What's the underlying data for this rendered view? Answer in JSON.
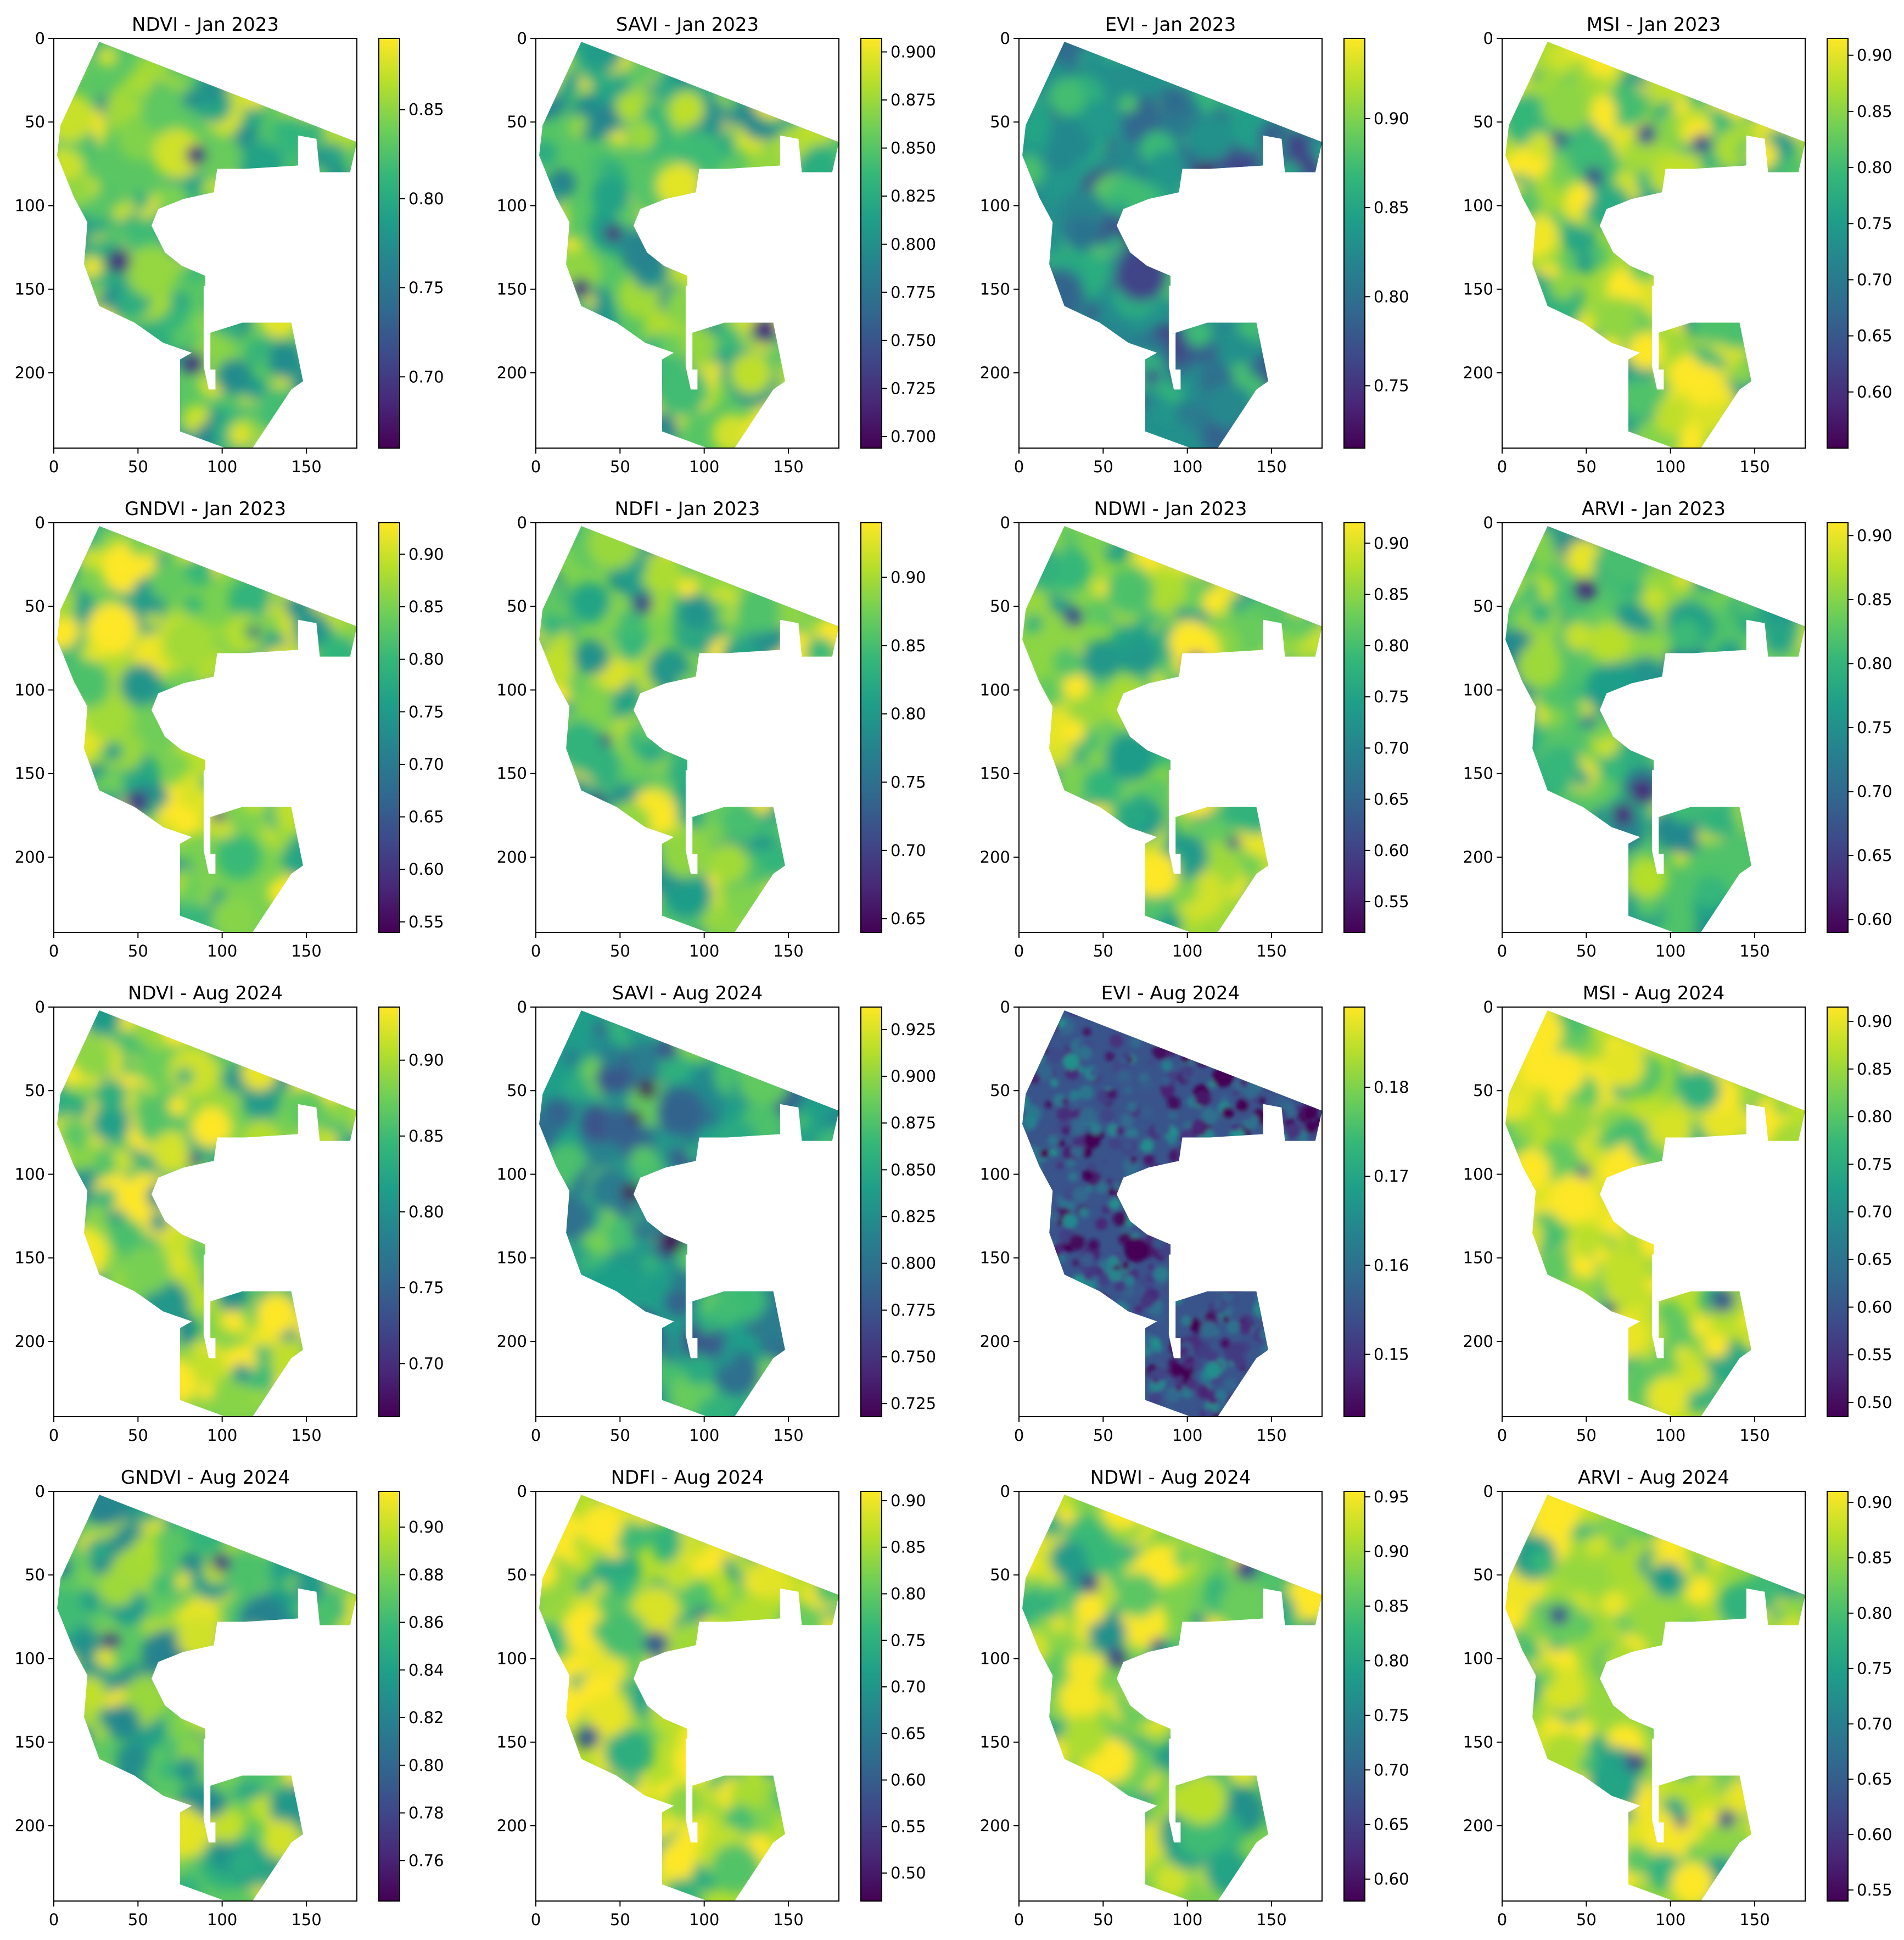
{
  "figure": {
    "colormap": "viridis",
    "colormap_stops": [
      "#440154",
      "#482878",
      "#3e4989",
      "#31688e",
      "#26828e",
      "#1f9e89",
      "#35b779",
      "#6ece58",
      "#b5de2b",
      "#fde725"
    ],
    "background_color": "#ffffff",
    "masked_color": "#ffffff",
    "rows": 4,
    "columns": 4
  },
  "chart_data": [
    {
      "type": "heatmap",
      "title": "NDVI - Jan 2023",
      "x_ticks": [
        0,
        50,
        100,
        150
      ],
      "y_ticks": [
        0,
        50,
        100,
        150,
        200
      ],
      "xlim": [
        0,
        180
      ],
      "ylim": [
        245,
        0
      ],
      "colorbar_ticks": [
        "0.70",
        "0.75",
        "0.80",
        "0.85"
      ],
      "colorbar_range": [
        0.66,
        0.89
      ],
      "field_mean": 0.83
    },
    {
      "type": "heatmap",
      "title": "SAVI - Jan 2023",
      "x_ticks": [
        0,
        50,
        100,
        150
      ],
      "y_ticks": [
        0,
        50,
        100,
        150,
        200
      ],
      "xlim": [
        0,
        180
      ],
      "ylim": [
        245,
        0
      ],
      "colorbar_ticks": [
        "0.700",
        "0.725",
        "0.750",
        "0.775",
        "0.800",
        "0.825",
        "0.850",
        "0.875",
        "0.900"
      ],
      "colorbar_range": [
        0.694,
        0.907
      ],
      "field_mean": 0.85
    },
    {
      "type": "heatmap",
      "title": "EVI - Jan 2023",
      "x_ticks": [
        0,
        50,
        100,
        150
      ],
      "y_ticks": [
        0,
        50,
        100,
        150,
        200
      ],
      "xlim": [
        0,
        180
      ],
      "ylim": [
        245,
        0
      ],
      "colorbar_ticks": [
        "0.75",
        "0.80",
        "0.85",
        "0.90"
      ],
      "colorbar_range": [
        0.715,
        0.945
      ],
      "field_mean": 0.83
    },
    {
      "type": "heatmap",
      "title": "MSI - Jan 2023",
      "x_ticks": [
        0,
        50,
        100,
        150
      ],
      "y_ticks": [
        0,
        50,
        100,
        150,
        200
      ],
      "xlim": [
        0,
        180
      ],
      "ylim": [
        245,
        0
      ],
      "colorbar_ticks": [
        "0.60",
        "0.65",
        "0.70",
        "0.75",
        "0.80",
        "0.85",
        "0.90"
      ],
      "colorbar_range": [
        0.55,
        0.915
      ],
      "field_mean": 0.86
    },
    {
      "type": "heatmap",
      "title": "GNDVI - Jan 2023",
      "x_ticks": [
        0,
        50,
        100,
        150
      ],
      "y_ticks": [
        0,
        50,
        100,
        150,
        200
      ],
      "xlim": [
        0,
        180
      ],
      "ylim": [
        245,
        0
      ],
      "colorbar_ticks": [
        "0.55",
        "0.60",
        "0.65",
        "0.70",
        "0.75",
        "0.80",
        "0.85",
        "0.90"
      ],
      "colorbar_range": [
        0.54,
        0.93
      ],
      "field_mean": 0.85
    },
    {
      "type": "heatmap",
      "title": "NDFI - Jan 2023",
      "x_ticks": [
        0,
        50,
        100,
        150
      ],
      "y_ticks": [
        0,
        50,
        100,
        150,
        200
      ],
      "xlim": [
        0,
        180
      ],
      "ylim": [
        245,
        0
      ],
      "colorbar_ticks": [
        "0.65",
        "0.70",
        "0.75",
        "0.80",
        "0.85",
        "0.90"
      ],
      "colorbar_range": [
        0.64,
        0.94
      ],
      "field_mean": 0.88
    },
    {
      "type": "heatmap",
      "title": "NDWI - Jan 2023",
      "x_ticks": [
        0,
        50,
        100,
        150
      ],
      "y_ticks": [
        0,
        50,
        100,
        150,
        200
      ],
      "xlim": [
        0,
        180
      ],
      "ylim": [
        245,
        0
      ],
      "colorbar_ticks": [
        "0.55",
        "0.60",
        "0.65",
        "0.70",
        "0.75",
        "0.80",
        "0.85",
        "0.90"
      ],
      "colorbar_range": [
        0.52,
        0.92
      ],
      "field_mean": 0.85
    },
    {
      "type": "heatmap",
      "title": "ARVI - Jan 2023",
      "x_ticks": [
        0,
        50,
        100,
        150
      ],
      "y_ticks": [
        0,
        50,
        100,
        150,
        200
      ],
      "xlim": [
        0,
        180
      ],
      "ylim": [
        245,
        0
      ],
      "colorbar_ticks": [
        "0.60",
        "0.65",
        "0.70",
        "0.75",
        "0.80",
        "0.85",
        "0.90"
      ],
      "colorbar_range": [
        0.59,
        0.91
      ],
      "field_mean": 0.82
    },
    {
      "type": "heatmap",
      "title": "NDVI - Aug 2024",
      "x_ticks": [
        0,
        50,
        100,
        150
      ],
      "y_ticks": [
        0,
        50,
        100,
        150,
        200
      ],
      "xlim": [
        0,
        180
      ],
      "ylim": [
        245,
        0
      ],
      "colorbar_ticks": [
        "0.70",
        "0.75",
        "0.80",
        "0.85",
        "0.90"
      ],
      "colorbar_range": [
        0.665,
        0.935
      ],
      "field_mean": 0.88
    },
    {
      "type": "heatmap",
      "title": "SAVI - Aug 2024",
      "x_ticks": [
        0,
        50,
        100,
        150
      ],
      "y_ticks": [
        0,
        50,
        100,
        150,
        200
      ],
      "xlim": [
        0,
        180
      ],
      "ylim": [
        245,
        0
      ],
      "colorbar_ticks": [
        "0.725",
        "0.750",
        "0.775",
        "0.800",
        "0.825",
        "0.850",
        "0.875",
        "0.900",
        "0.925"
      ],
      "colorbar_range": [
        0.718,
        0.937
      ],
      "field_mean": 0.84
    },
    {
      "type": "heatmap",
      "title": "EVI - Aug 2024",
      "x_ticks": [
        0,
        50,
        100,
        150
      ],
      "y_ticks": [
        0,
        50,
        100,
        150,
        200
      ],
      "xlim": [
        0,
        180
      ],
      "ylim": [
        245,
        0
      ],
      "colorbar_ticks": [
        "0.15",
        "0.16",
        "0.17",
        "0.18"
      ],
      "colorbar_range": [
        0.143,
        0.189
      ],
      "field_mean": 0.155
    },
    {
      "type": "heatmap",
      "title": "MSI - Aug 2024",
      "x_ticks": [
        0,
        50,
        100,
        150
      ],
      "y_ticks": [
        0,
        50,
        100,
        150,
        200
      ],
      "xlim": [
        0,
        180
      ],
      "ylim": [
        245,
        0
      ],
      "colorbar_ticks": [
        "0.50",
        "0.55",
        "0.60",
        "0.65",
        "0.70",
        "0.75",
        "0.80",
        "0.85",
        "0.90"
      ],
      "colorbar_range": [
        0.485,
        0.915
      ],
      "field_mean": 0.87
    },
    {
      "type": "heatmap",
      "title": "GNDVI - Aug 2024",
      "x_ticks": [
        0,
        50,
        100,
        150
      ],
      "y_ticks": [
        0,
        50,
        100,
        150,
        200
      ],
      "xlim": [
        0,
        180
      ],
      "ylim": [
        245,
        0
      ],
      "colorbar_ticks": [
        "0.76",
        "0.78",
        "0.80",
        "0.82",
        "0.84",
        "0.86",
        "0.88",
        "0.90"
      ],
      "colorbar_range": [
        0.743,
        0.915
      ],
      "field_mean": 0.87
    },
    {
      "type": "heatmap",
      "title": "NDFI - Aug 2024",
      "x_ticks": [
        0,
        50,
        100,
        150
      ],
      "y_ticks": [
        0,
        50,
        100,
        150,
        200
      ],
      "xlim": [
        0,
        180
      ],
      "ylim": [
        245,
        0
      ],
      "colorbar_ticks": [
        "0.50",
        "0.55",
        "0.60",
        "0.65",
        "0.70",
        "0.75",
        "0.80",
        "0.85",
        "0.90"
      ],
      "colorbar_range": [
        0.47,
        0.91
      ],
      "field_mean": 0.86
    },
    {
      "type": "heatmap",
      "title": "NDWI - Aug 2024",
      "x_ticks": [
        0,
        50,
        100,
        150
      ],
      "y_ticks": [
        0,
        50,
        100,
        150,
        200
      ],
      "xlim": [
        0,
        180
      ],
      "ylim": [
        245,
        0
      ],
      "colorbar_ticks": [
        "0.60",
        "0.65",
        "0.70",
        "0.75",
        "0.80",
        "0.85",
        "0.90",
        "0.95"
      ],
      "colorbar_range": [
        0.58,
        0.955
      ],
      "field_mean": 0.88
    },
    {
      "type": "heatmap",
      "title": "ARVI - Aug 2024",
      "x_ticks": [
        0,
        50,
        100,
        150
      ],
      "y_ticks": [
        0,
        50,
        100,
        150,
        200
      ],
      "xlim": [
        0,
        180
      ],
      "ylim": [
        245,
        0
      ],
      "colorbar_ticks": [
        "0.55",
        "0.60",
        "0.65",
        "0.70",
        "0.75",
        "0.80",
        "0.85",
        "0.90"
      ],
      "colorbar_range": [
        0.54,
        0.91
      ],
      "field_mean": 0.85
    }
  ]
}
